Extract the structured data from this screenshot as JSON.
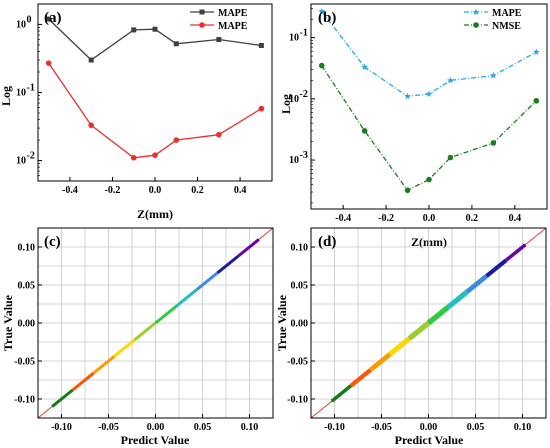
{
  "chart_data": [
    {
      "panel_label": "(a)",
      "type": "line",
      "yscale": "log",
      "xlabel": "",
      "ylabel": "Log",
      "xlim": [
        -0.55,
        0.55
      ],
      "ylim_log10": [
        -2.3,
        0.3
      ],
      "x_ticks": [
        "-0.4",
        "-0.2",
        "0.0",
        "0.2",
        "0.4"
      ],
      "y_ticks": [
        {
          "base": "10",
          "exp": "0"
        },
        {
          "base": "10",
          "exp": "-1"
        },
        {
          "base": "10",
          "exp": "-2"
        }
      ],
      "x": [
        -0.5,
        -0.3,
        -0.1,
        0.0,
        0.1,
        0.3,
        0.5
      ],
      "series": [
        {
          "name": "MAPE",
          "color": "#404040",
          "marker": "square",
          "dash": "solid",
          "values": [
            1.2,
            0.3,
            0.83,
            0.85,
            0.52,
            0.6,
            0.49
          ]
        },
        {
          "name": "MAPE",
          "color": "#e8312f",
          "marker": "circle",
          "dash": "solid",
          "values": [
            0.27,
            0.033,
            0.011,
            0.012,
            0.02,
            0.024,
            0.058
          ]
        }
      ],
      "legend": "top-right",
      "grid": false
    },
    {
      "panel_label": "(b)",
      "type": "line",
      "yscale": "log",
      "xlabel": "Z(mm)",
      "ylabel": "Log",
      "xlim": [
        -0.55,
        0.55
      ],
      "ylim_log10": [
        -3.8,
        -0.45
      ],
      "x_ticks": [
        "-0.4",
        "-0.2",
        "0.0",
        "0.2",
        "0.4"
      ],
      "y_ticks": [
        {
          "base": "10",
          "exp": "-1"
        },
        {
          "base": "10",
          "exp": "-2"
        },
        {
          "base": "10",
          "exp": "-3"
        }
      ],
      "x": [
        -0.5,
        -0.3,
        -0.1,
        0.0,
        0.1,
        0.3,
        0.5
      ],
      "series": [
        {
          "name": "MAPE",
          "color": "#2aa8e0",
          "marker": "star",
          "dash": "dashdot",
          "values": [
            0.27,
            0.033,
            0.011,
            0.012,
            0.02,
            0.024,
            0.058
          ]
        },
        {
          "name": "NMSE",
          "color": "#1b7a1b",
          "marker": "circle",
          "dash": "dashdot",
          "values": [
            0.035,
            0.003,
            0.00032,
            0.00048,
            0.0011,
            0.0019,
            0.0093
          ]
        }
      ],
      "legend": "top-right",
      "grid": false
    },
    {
      "panel_label": "(c)",
      "type": "scatter",
      "xlabel": "Predict Value",
      "ylabel": "True Value",
      "xlim": [
        -0.125,
        0.125
      ],
      "ylim": [
        -0.125,
        0.125
      ],
      "x_ticks": [
        "-0.10",
        "-0.05",
        "0.00",
        "0.05",
        "0.10"
      ],
      "y_ticks": [
        "0.10",
        "0.05",
        "0.00",
        "-0.05",
        "-0.10"
      ],
      "range": [
        -0.11,
        0.11
      ],
      "diagonal_color": "#e23a3a",
      "colormap": [
        "#1a7a1a",
        "#ff5500",
        "#ff9900",
        "#ffd700",
        "#9acd32",
        "#2ecc40",
        "#20c0c0",
        "#3a8adf",
        "#1a1aa0",
        "#6a00a8"
      ],
      "grid": true
    },
    {
      "panel_label": "(d)",
      "type": "scatter",
      "xlabel": "Predict Value",
      "ylabel": "True Value",
      "xlim": [
        -0.125,
        0.125
      ],
      "ylim": [
        -0.125,
        0.125
      ],
      "x_ticks": [
        "-0.10",
        "-0.05",
        "0.00",
        "0.05",
        "0.10"
      ],
      "y_ticks": [
        "0.10",
        "0.05",
        "0.00",
        "-0.05",
        "-0.10"
      ],
      "range": [
        -0.103,
        0.103
      ],
      "diagonal_color": "#e23a3a",
      "colormap": [
        "#1a7a1a",
        "#ff5500",
        "#ff9900",
        "#ffd700",
        "#9acd32",
        "#2ecc40",
        "#20c0c0",
        "#3a8adf",
        "#1a1aa0",
        "#6a00a8"
      ],
      "grid": true
    }
  ]
}
